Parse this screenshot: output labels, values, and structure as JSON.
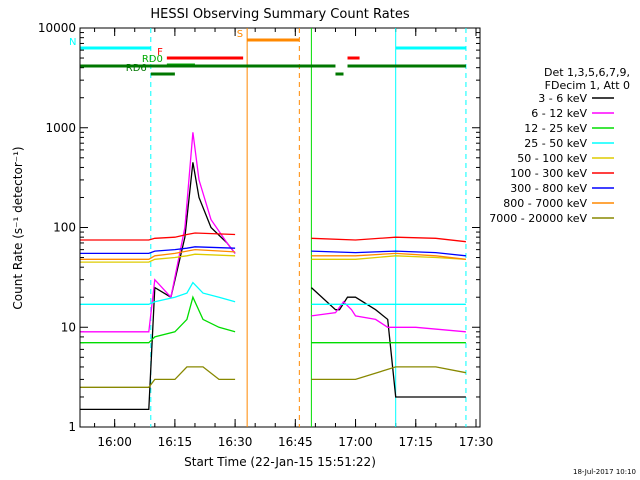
{
  "chart_data": {
    "type": "line",
    "title": "HESSI Observing Summary Count Rates",
    "xlabel": "Start Time (22-Jan-15 15:51:22)",
    "ylabel": "Count Rate (s⁻¹ detector⁻¹)",
    "yscale": "log",
    "ylim": [
      1,
      10000
    ],
    "xlim": [
      "15:51:22",
      "17:31:00"
    ],
    "x_ticks": [
      "16:00",
      "16:15",
      "16:30",
      "16:45",
      "17:00",
      "17:15",
      "17:30"
    ],
    "y_ticks": [
      "1",
      "10",
      "100",
      "1000",
      "10000"
    ],
    "legend": {
      "position": "right",
      "title_lines": [
        "Det 1,3,5,6,7,9,",
        "FDecim 1, Att 0"
      ]
    },
    "series": [
      {
        "name": "3 - 6 keV",
        "color": "#000000",
        "x": [
          "15:51:30",
          "16:08:30",
          "16:10:00",
          "16:14:00",
          "16:17:30",
          "16:19:30",
          "16:21:00",
          "16:24:00",
          "16:28:00",
          "16:30:00",
          "16:49:00",
          "16:55:00",
          "16:56:00",
          "16:58:00",
          "17:00:00",
          "17:05:00",
          "17:08:00",
          "17:10:00",
          "17:27:30"
        ],
        "y": [
          1.5,
          1.5,
          25,
          20,
          80,
          450,
          200,
          100,
          70,
          55,
          25,
          15,
          15,
          20,
          20,
          15,
          12,
          2.0,
          2.0
        ]
      },
      {
        "name": "6 - 12 keV",
        "color": "#ff00ff",
        "x": [
          "15:51:30",
          "16:08:30",
          "16:10:00",
          "16:14:00",
          "16:17:30",
          "16:19:30",
          "16:21:00",
          "16:24:00",
          "16:28:00",
          "16:30:00",
          "16:49:00",
          "16:55:00",
          "16:57:00",
          "16:59:00",
          "17:00:00",
          "17:05:00",
          "17:08:00",
          "17:15:00",
          "17:27:30"
        ],
        "y": [
          9,
          9,
          30,
          20,
          100,
          900,
          300,
          120,
          70,
          55,
          13,
          14,
          18,
          15,
          13,
          12,
          10,
          10,
          9
        ]
      },
      {
        "name": "12 - 25 keV",
        "color": "#00dd00",
        "x": [
          "15:51:30",
          "16:08:30",
          "16:10:00",
          "16:15:00",
          "16:18:00",
          "16:19:30",
          "16:22:00",
          "16:26:00",
          "16:30:00",
          "16:49:00",
          "16:58:00",
          "17:00:00",
          "17:10:00",
          "17:27:30"
        ],
        "y": [
          7,
          7,
          8,
          9,
          12,
          20,
          12,
          10,
          9,
          7,
          7,
          7,
          7,
          7
        ]
      },
      {
        "name": "25 - 50 keV",
        "color": "#00ffff",
        "x": [
          "15:51:30",
          "16:08:30",
          "16:10:00",
          "16:15:00",
          "16:18:00",
          "16:19:30",
          "16:22:00",
          "16:26:00",
          "16:30:00",
          "16:49:00",
          "17:00:00",
          "17:10:00",
          "17:27:30"
        ],
        "y": [
          17,
          17,
          18,
          20,
          22,
          28,
          22,
          20,
          18,
          17,
          17,
          17,
          17
        ]
      },
      {
        "name": "50 - 100 keV",
        "color": "#ddcc00",
        "x": [
          "15:51:30",
          "16:08:30",
          "16:10:00",
          "16:15:00",
          "16:18:00",
          "16:20:00",
          "16:30:00",
          "16:49:00",
          "17:00:00",
          "17:10:00",
          "17:20:00",
          "17:27:30"
        ],
        "y": [
          45,
          45,
          48,
          50,
          52,
          54,
          52,
          48,
          48,
          52,
          50,
          48
        ]
      },
      {
        "name": "100 - 300 keV",
        "color": "#ff0000",
        "x": [
          "15:51:30",
          "16:08:30",
          "16:10:00",
          "16:15:00",
          "16:18:00",
          "16:20:00",
          "16:30:00",
          "16:49:00",
          "17:00:00",
          "17:10:00",
          "17:20:00",
          "17:27:30"
        ],
        "y": [
          75,
          75,
          78,
          80,
          85,
          88,
          85,
          78,
          75,
          80,
          78,
          72
        ]
      },
      {
        "name": "300 - 800 keV",
        "color": "#0000ff",
        "x": [
          "15:51:30",
          "16:08:30",
          "16:10:00",
          "16:15:00",
          "16:18:00",
          "16:20:00",
          "16:30:00",
          "16:49:00",
          "17:00:00",
          "17:10:00",
          "17:20:00",
          "17:27:30"
        ],
        "y": [
          55,
          55,
          58,
          60,
          62,
          64,
          62,
          58,
          56,
          58,
          56,
          52
        ]
      },
      {
        "name": "800 - 7000 keV",
        "color": "#ff8800",
        "x": [
          "15:51:30",
          "16:08:30",
          "16:10:00",
          "16:15:00",
          "16:18:00",
          "16:20:00",
          "16:30:00",
          "16:49:00",
          "17:00:00",
          "17:10:00",
          "17:20:00",
          "17:27:30"
        ],
        "y": [
          48,
          48,
          52,
          55,
          58,
          60,
          57,
          52,
          52,
          55,
          52,
          48
        ]
      },
      {
        "name": "7000 - 20000 keV",
        "color": "#888800",
        "x": [
          "15:51:30",
          "16:08:30",
          "16:10:00",
          "16:15:00",
          "16:18:00",
          "16:22:00",
          "16:26:00",
          "16:30:00",
          "16:49:00",
          "17:00:00",
          "17:10:00",
          "17:20:00",
          "17:27:30"
        ],
        "y": [
          2.5,
          2.5,
          3,
          3,
          4,
          4,
          3,
          3,
          3,
          3,
          4,
          4,
          3.5
        ]
      }
    ],
    "flag_bars": [
      {
        "label": "N",
        "color": "#00ffff",
        "segments": [
          [
            "15:51:30",
            "16:09:00"
          ],
          [
            "17:10:00",
            "17:27:30"
          ]
        ]
      },
      {
        "label": "S",
        "color": "#ff8800",
        "segments": [
          [
            "16:33:00",
            "16:46:00"
          ]
        ]
      },
      {
        "label": "F",
        "color": "#ff0000",
        "segments": [
          [
            "16:13:00",
            "16:32:00"
          ],
          [
            "16:58:00",
            "17:01:00"
          ]
        ]
      },
      {
        "label": "RD0",
        "color": "#00aa00",
        "segments": [
          [
            "16:13:00",
            "16:20:00"
          ]
        ]
      },
      {
        "label": "",
        "color": "#007700",
        "segments": [
          [
            "15:51:30",
            "16:55:00"
          ],
          [
            "16:58:00",
            "17:27:30"
          ]
        ]
      },
      {
        "label": "RD6",
        "color": "#007700",
        "segments": [
          [
            "16:09:00",
            "16:15:00"
          ],
          [
            "16:55:00",
            "16:57:00"
          ]
        ]
      }
    ],
    "vertical_markers": [
      {
        "time": "16:09:00",
        "color": "#00ffff",
        "style": "dashed"
      },
      {
        "time": "17:10:00",
        "color": "#00ffff",
        "style": "solid"
      },
      {
        "time": "17:27:30",
        "color": "#00ffff",
        "style": "dashed"
      },
      {
        "time": "16:33:00",
        "color": "#ff8800",
        "style": "solid"
      },
      {
        "time": "16:46:00",
        "color": "#ff8800",
        "style": "dashed"
      },
      {
        "time": "16:49:00",
        "color": "#00dd00",
        "style": "solid"
      }
    ],
    "gaps": [
      [
        "16:33:00",
        "16:49:00"
      ]
    ]
  },
  "footer": {
    "timestamp": "18-Jul-2017 10:10"
  }
}
